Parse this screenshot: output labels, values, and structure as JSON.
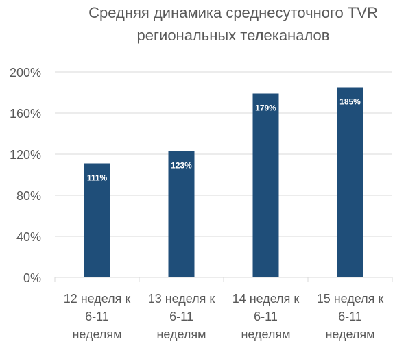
{
  "chart_data": {
    "type": "bar",
    "title_lines": [
      "Средняя динамика среднесуточного TVR",
      "региональных телеканалов"
    ],
    "categories": [
      [
        "12 неделя к",
        "6-11",
        "неделям"
      ],
      [
        "13 неделя к",
        "6-11",
        "неделям"
      ],
      [
        "14 неделя к",
        "6-11",
        "неделям"
      ],
      [
        "15 неделя к",
        "6-11",
        "неделям"
      ]
    ],
    "values": [
      111,
      123,
      179,
      185
    ],
    "data_labels": [
      "111%",
      "123%",
      "179%",
      "185%"
    ],
    "y_ticks": [
      "0%",
      "40%",
      "80%",
      "120%",
      "160%",
      "200%"
    ],
    "ylim": [
      0,
      200
    ],
    "grid": true,
    "legend": "none",
    "colors": {
      "bar": "#1f4e79",
      "grid": "#d9d9d9",
      "axis_text": "#595959",
      "data_label": "#ffffff"
    }
  }
}
